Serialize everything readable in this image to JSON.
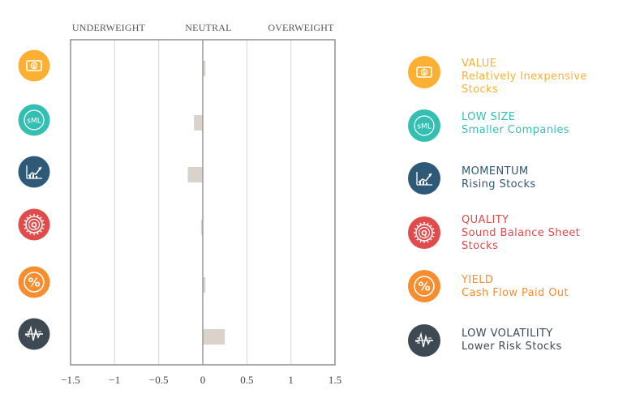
{
  "chart_data": {
    "type": "bar",
    "orientation": "horizontal",
    "header_labels": [
      "UNDERWEIGHT",
      "NEUTRAL",
      "OVERWEIGHT"
    ],
    "x_ticks": [
      "−1.5",
      "−1",
      "−0.5",
      "0",
      "0.5",
      "1",
      "1.5"
    ],
    "xlim": [
      -1.5,
      1.5
    ],
    "grid": true,
    "categories": [
      "VALUE",
      "LOW SIZE",
      "MOMENTUM",
      "QUALITY",
      "YIELD",
      "LOW VOLATILITY"
    ],
    "values": [
      0.03,
      -0.1,
      -0.17,
      -0.02,
      0.03,
      0.25
    ],
    "bar_color": "#d9d3cc"
  },
  "factors": [
    {
      "name": "VALUE",
      "desc": "Relatively Inexpensive Stocks",
      "icon": "dollar-bill-icon",
      "color": "#fbb034"
    },
    {
      "name": "LOW SIZE",
      "desc": "Smaller Companies",
      "icon": "sml-icon",
      "color": "#35bfb3"
    },
    {
      "name": "MOMENTUM",
      "desc": "Rising Stocks",
      "icon": "rising-chart-icon",
      "color": "#2e5a78"
    },
    {
      "name": "QUALITY",
      "desc": "Sound Balance Sheet Stocks",
      "icon": "quality-seal-icon",
      "color": "#e04b4b"
    },
    {
      "name": "YIELD",
      "desc": "Cash Flow Paid Out",
      "icon": "percent-icon",
      "color": "#f68d2e"
    },
    {
      "name": "LOW VOLATILITY",
      "desc": "Lower Risk Stocks",
      "icon": "volatility-wave-icon",
      "color": "#3d4a54"
    }
  ]
}
